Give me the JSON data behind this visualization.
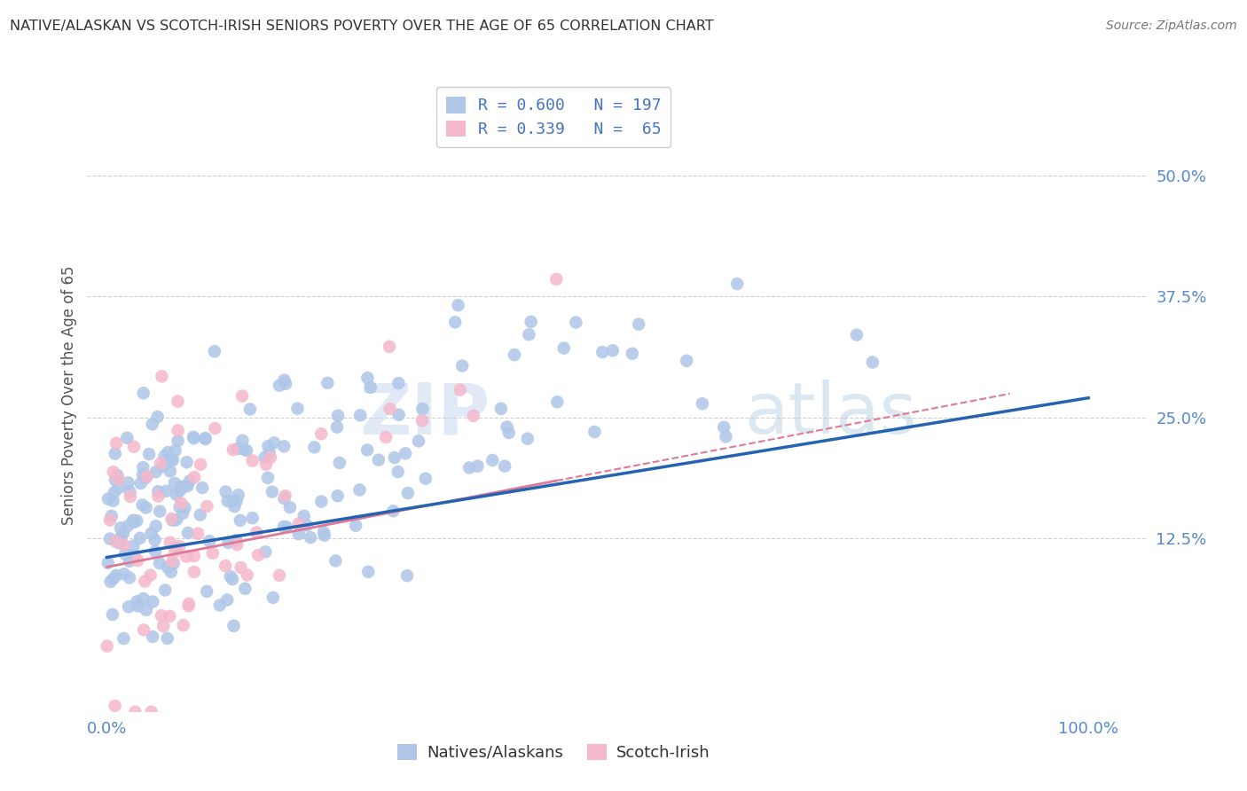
{
  "title": "NATIVE/ALASKAN VS SCOTCH-IRISH SENIORS POVERTY OVER THE AGE OF 65 CORRELATION CHART",
  "source": "Source: ZipAtlas.com",
  "ylabel": "Seniors Poverty Over the Age of 65",
  "blue_R": 0.6,
  "blue_N": 197,
  "pink_R": 0.339,
  "pink_N": 65,
  "blue_color": "#aec6e8",
  "pink_color": "#f5b8cb",
  "blue_line_color": "#2563b0",
  "pink_line_color": "#e07898",
  "text_color": "#4472c4",
  "title_color": "#333333",
  "axis_tick_color": "#5588cc",
  "ytick_labels": [
    "12.5%",
    "25.0%",
    "37.5%",
    "50.0%"
  ],
  "ytick_values": [
    0.125,
    0.25,
    0.375,
    0.5
  ],
  "xtick_labels": [
    "0.0%",
    "100.0%"
  ],
  "xtick_values": [
    0.0,
    1.0
  ],
  "xlim": [
    -0.02,
    1.06
  ],
  "ylim": [
    -0.055,
    0.6
  ],
  "background_color": "#ffffff",
  "watermark_zip": "ZIP",
  "watermark_atlas": "atlas",
  "blue_scatter_seed": 42,
  "pink_scatter_seed": 7
}
